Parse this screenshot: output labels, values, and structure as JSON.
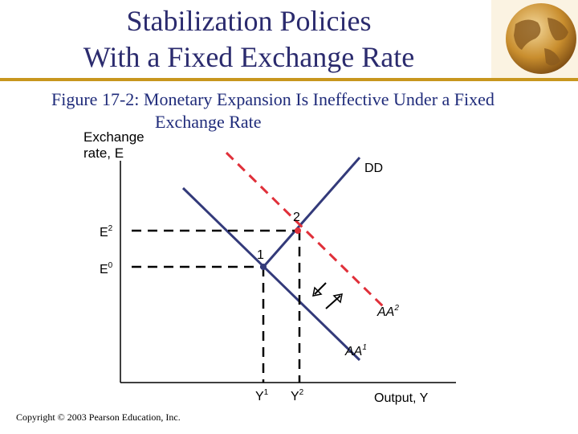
{
  "title": {
    "line1": "Stabilization Policies",
    "line2": "With a Fixed Exchange Rate"
  },
  "caption": {
    "figure": "Figure 17-2:",
    "line1": "Monetary Expansion Is Ineffective Under a Fixed",
    "line2": "Exchange Rate"
  },
  "axes": {
    "y_label_line1": "Exchange",
    "y_label_line2": "rate, E",
    "x_label": "Output, Y"
  },
  "curves": {
    "dd": "DD",
    "aa1_base": "AA",
    "aa1_sup": "1",
    "aa2_base": "AA",
    "aa2_sup": "2"
  },
  "points": {
    "p1": "1",
    "p2": "2",
    "e0_base": "E",
    "e0_sup": "0",
    "e2_base": "E",
    "e2_sup": "2",
    "y1_base": "Y",
    "y1_sup": "1",
    "y2_base": "Y",
    "y2_sup": "2"
  },
  "colors": {
    "title": "#2b2b6e",
    "rule": "#c8961e",
    "dd_curve": "#333a7a",
    "aa_curve": "#e0303a"
  },
  "icons": {
    "decoration": "globe-icon"
  },
  "copyright": "Copyright © 2003 Pearson Education, Inc."
}
